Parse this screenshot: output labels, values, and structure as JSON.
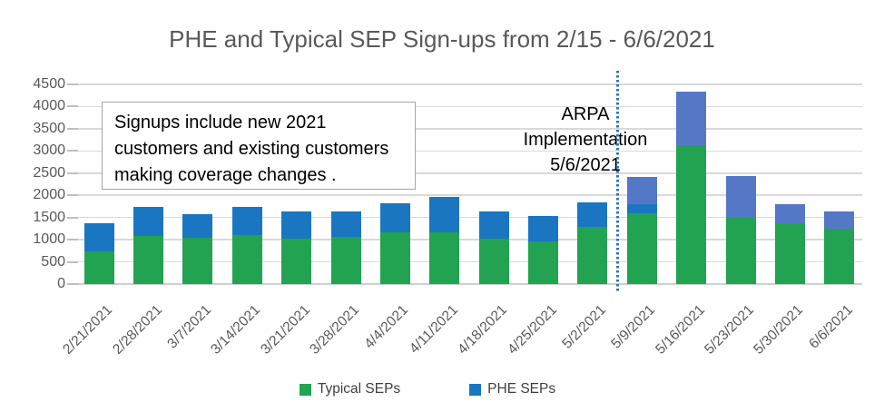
{
  "title": "PHE and Typical SEP Sign-ups from 2/15 - 6/6/2021",
  "annotation_box": {
    "lines": [
      "Signups include new 2021",
      "customers and existing customers",
      "making coverage changes ."
    ]
  },
  "arpa_annotation": {
    "lines": [
      "ARPA",
      "Implementation",
      "5/6/2021"
    ]
  },
  "legend": {
    "items": [
      {
        "label": "Typical SEPs",
        "color": "#21A351"
      },
      {
        "label": "PHE SEPs",
        "color": "#1B76C2"
      }
    ]
  },
  "colors": {
    "typical_green": "#21A351",
    "phe_bright_blue": "#1B76C2",
    "phe_muted_blue_post_arpa": "#5578C6",
    "vline_blue": "#2E75B6",
    "gridline": "#D9D9D9",
    "axis_text": "#595959",
    "title_text": "#595959",
    "annotation_border": "#A6A6A6"
  },
  "chart_data": {
    "type": "bar",
    "stacked": true,
    "title": "PHE and Typical SEP Sign-ups from 2/15 - 6/6/2021",
    "categories": [
      "2/21/2021",
      "2/28/2021",
      "3/7/2021",
      "3/14/2021",
      "3/21/2021",
      "3/28/2021",
      "4/4/2021",
      "4/11/2021",
      "4/18/2021",
      "4/25/2021",
      "5/2/2021",
      "5/9/2021",
      "5/16/2021",
      "5/23/2021",
      "5/30/2021",
      "6/6/2021"
    ],
    "series": [
      {
        "name": "Typical SEPs",
        "color": "#21A351",
        "values": [
          730,
          1090,
          1040,
          1110,
          1020,
          1060,
          1160,
          1170,
          1030,
          970,
          1290,
          1600,
          3130,
          1520,
          1380,
          1250
        ]
      },
      {
        "name": "PHE SEPs",
        "color": "#1B76C2",
        "values": [
          650,
          650,
          540,
          630,
          620,
          580,
          660,
          800,
          610,
          560,
          560,
          810,
          1200,
          920,
          420,
          390
        ]
      }
    ],
    "totals": [
      1380,
      1740,
      1580,
      1740,
      1640,
      1640,
      1820,
      1970,
      1640,
      1530,
      1850,
      2410,
      4330,
      2440,
      1800,
      1640
    ],
    "segment_render": {
      "muted_phe_color": "#5578C6",
      "muted_phe_from_category": "5/9/2021",
      "bright_band_on_5_9": 190,
      "note": "PHE segments from 5/9/2021 onward are drawn in a muted purple-blue; the 5/9 bar shows a thin bright-blue band below the muted segment."
    },
    "yticks": [
      0,
      500,
      1000,
      1500,
      2000,
      2500,
      3000,
      3500,
      4000,
      4500
    ],
    "ylim": [
      0,
      4500
    ],
    "grid": true,
    "legend_position": "bottom",
    "annotations": [
      {
        "type": "textbox",
        "text": "Signups include new 2021 customers and existing customers making coverage changes ."
      },
      {
        "type": "label",
        "text": "ARPA Implementation 5/6/2021"
      },
      {
        "type": "vline",
        "between": [
          "5/2/2021",
          "5/9/2021"
        ],
        "style": "dotted",
        "color": "#2E75B6"
      }
    ]
  }
}
